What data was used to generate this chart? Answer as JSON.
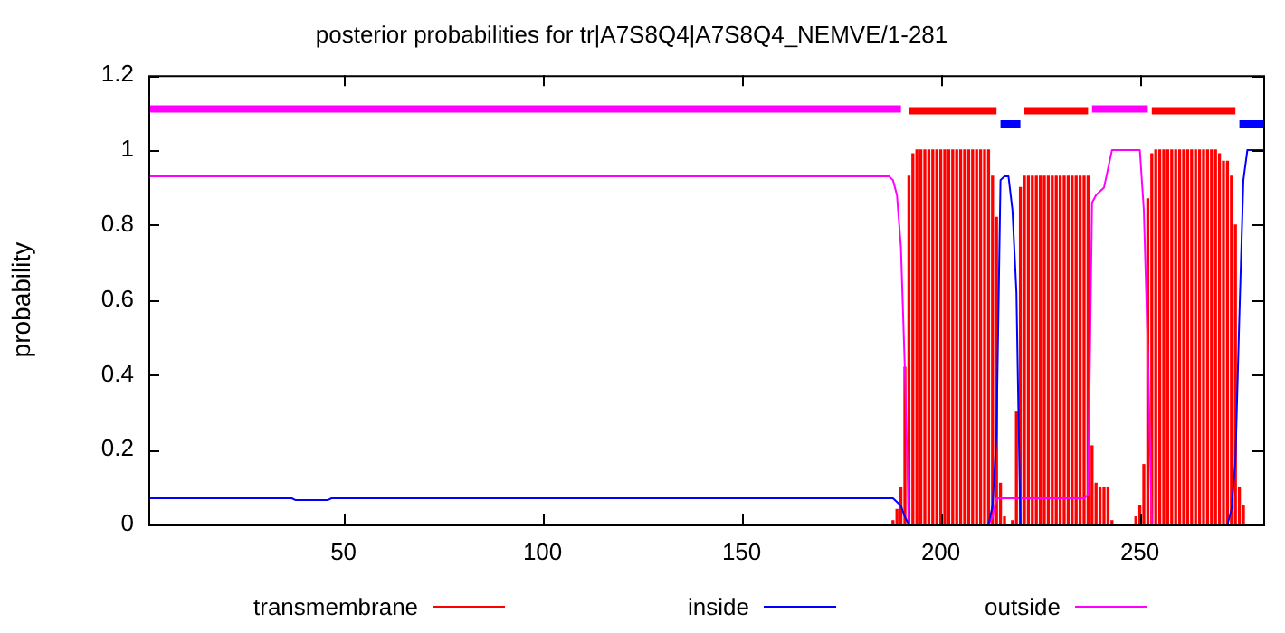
{
  "chart_data": {
    "type": "line",
    "title": "posterior probabilities for tr|A7S8Q4|A7S8Q4_NEMVE/1-281",
    "ylabel": "probability",
    "xlim": [
      1,
      281
    ],
    "xticks": [
      50,
      100,
      150,
      200,
      250
    ],
    "ylim": [
      0,
      1.2
    ],
    "yticks": [
      0,
      0.2,
      0.4,
      0.6,
      0.8,
      1,
      1.2
    ],
    "grid": false,
    "legend": "bottom",
    "marker": "none",
    "line_style": "solid",
    "series": [
      {
        "name": "transmembrane",
        "type": "bar",
        "color": "#ff0000",
        "x": [
          185,
          186,
          187,
          188,
          189,
          190,
          191,
          192,
          193,
          194,
          195,
          196,
          197,
          198,
          199,
          200,
          201,
          202,
          203,
          204,
          205,
          206,
          207,
          208,
          209,
          210,
          211,
          212,
          213,
          214,
          215,
          216,
          217,
          218,
          219,
          220,
          221,
          222,
          223,
          224,
          225,
          226,
          227,
          228,
          229,
          230,
          231,
          232,
          233,
          234,
          235,
          236,
          237,
          238,
          239,
          240,
          241,
          242,
          243,
          244,
          245,
          246,
          247,
          248,
          249,
          250,
          251,
          252,
          253,
          254,
          255,
          256,
          257,
          258,
          259,
          260,
          261,
          262,
          263,
          264,
          265,
          266,
          267,
          268,
          269,
          270,
          271,
          272,
          273,
          274,
          275,
          276,
          277,
          278,
          279,
          280,
          281
        ],
        "values": [
          0,
          0,
          0,
          0.01,
          0.04,
          0.1,
          0.42,
          0.93,
          0.99,
          1,
          1,
          1,
          1,
          1,
          1,
          1,
          1,
          1,
          1,
          1,
          1,
          1,
          1,
          1,
          1,
          1,
          1,
          1,
          0.93,
          0.82,
          0.11,
          0.02,
          0,
          0.01,
          0.3,
          0.9,
          0.93,
          0.93,
          0.93,
          0.93,
          0.93,
          0.93,
          0.93,
          0.93,
          0.93,
          0.93,
          0.93,
          0.93,
          0.93,
          0.93,
          0.93,
          0.93,
          0.93,
          0.21,
          0.11,
          0.1,
          0.1,
          0.1,
          0.01,
          0,
          0,
          0,
          0,
          0,
          0.02,
          0.05,
          0.16,
          0.87,
          0.99,
          1,
          1,
          1,
          1,
          1,
          1,
          1,
          1,
          1,
          1,
          1,
          1,
          1,
          1,
          1,
          1,
          0.99,
          0.97,
          0.97,
          0.93,
          0.8,
          0.1,
          0.05,
          0,
          0,
          0,
          0,
          0
        ]
      },
      {
        "name": "inside",
        "color": "#0000ff",
        "x": [
          1,
          37,
          38,
          46,
          47,
          188,
          190,
          191,
          192,
          212,
          213,
          214,
          215,
          216,
          217,
          218,
          219,
          220,
          272,
          273,
          274,
          275,
          276,
          277,
          281
        ],
        "values": [
          0.07,
          0.07,
          0.065,
          0.065,
          0.07,
          0.07,
          0.05,
          0.02,
          0,
          0,
          0.05,
          0.24,
          0.92,
          0.93,
          0.93,
          0.84,
          0.62,
          0,
          0,
          0.04,
          0.17,
          0.56,
          0.92,
          1,
          1
        ]
      },
      {
        "name": "outside",
        "color": "#ff00ff",
        "x": [
          1,
          187,
          188,
          189,
          190,
          191,
          192,
          212,
          213,
          214,
          215,
          236,
          237,
          238,
          239,
          240,
          241,
          242,
          243,
          250,
          251,
          252,
          253,
          281
        ],
        "values": [
          0.93,
          0.93,
          0.92,
          0.88,
          0.74,
          0.41,
          0,
          0,
          0.02,
          0.07,
          0.07,
          0.07,
          0.08,
          0.86,
          0.88,
          0.89,
          0.9,
          0.95,
          1,
          1,
          0.84,
          0.47,
          0,
          0
        ]
      },
      {
        "color": "#ff00ff",
        "x": [
          1,
          190
        ],
        "values": [
          1.11,
          1.11
        ]
      },
      {
        "color": "#ff0000",
        "x": [
          192,
          214
        ],
        "values": [
          1.105,
          1.105
        ]
      },
      {
        "color": "#0000ff",
        "x": [
          215,
          220
        ],
        "values": [
          1.07,
          1.07
        ]
      },
      {
        "color": "#ff0000",
        "x": [
          221,
          237
        ],
        "values": [
          1.105,
          1.105
        ]
      },
      {
        "color": "#ff00ff",
        "x": [
          238,
          252
        ],
        "values": [
          1.11,
          1.11
        ]
      },
      {
        "color": "#ff0000",
        "x": [
          253,
          274
        ],
        "values": [
          1.105,
          1.105
        ]
      },
      {
        "color": "#0000ff",
        "x": [
          275,
          281
        ],
        "values": [
          1.07,
          1.07
        ]
      }
    ]
  }
}
